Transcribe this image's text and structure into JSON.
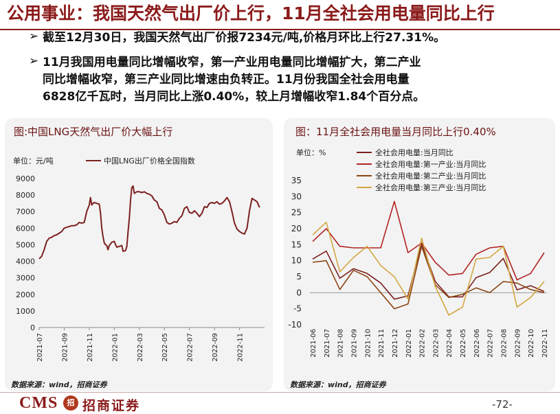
{
  "header": {
    "title": "公用事业：我国天然气出厂价上行，11月全社会用电量同比上行"
  },
  "bullets": [
    {
      "mark": "➢",
      "lines": [
        "截至12月30日，我国天然气出厂价报7234元/吨,价格月环比上行27.31%。"
      ]
    },
    {
      "mark": "➢",
      "lines": [
        "11月我国用电量同比增幅收窄，第一产业用电量同比增幅扩大，第二产业",
        "同比增幅收窄，第三产业同比增速由负转正。11月份我国全社会用电量",
        "6828亿千瓦时，当月同比上涨0.40%，较上月增幅收窄1.84个百分点。"
      ]
    }
  ],
  "left_panel": {
    "title": "图:中国LNG天然气出厂价大幅上行",
    "source": "数据来源：wind，招商证券"
  },
  "right_panel": {
    "title": "图：11月全社会用电量当月同比上行0.40%",
    "source": "数据来源：wind，招商证券"
  },
  "footer": {
    "logo_text": "CMS",
    "logo_mark": "招",
    "logo_cn": "招商证券",
    "page": "-72-"
  },
  "colors": {
    "brand": "#8b1a1a",
    "line_dark": "#7b1f1f",
    "line_red": "#b22222",
    "line_brown": "#8b4513",
    "line_gold": "#d4a640"
  },
  "chart_data": [
    {
      "type": "line",
      "unit_label": "单位：元/吨",
      "title": "图:中国LNG天然气出厂价大幅上行",
      "ylim": [
        0,
        9000
      ],
      "yticks": [
        0,
        1000,
        2000,
        3000,
        4000,
        5000,
        6000,
        7000,
        8000,
        9000
      ],
      "xticks": [
        "2021-07",
        "2021-09",
        "2021-11",
        "2022-01",
        "2022-03",
        "2022-05",
        "2022-07",
        "2022-09",
        "2022-11"
      ],
      "x_month_range": [
        0,
        18
      ],
      "series": [
        {
          "name": "中国LNG出厂价格全国指数",
          "color": "#7b1f1f",
          "points": [
            [
              0.0,
              4150
            ],
            [
              0.2,
              4300
            ],
            [
              0.4,
              4700
            ],
            [
              0.6,
              5200
            ],
            [
              0.8,
              5400
            ],
            [
              1.0,
              5450
            ],
            [
              1.2,
              5550
            ],
            [
              1.4,
              5600
            ],
            [
              1.6,
              5700
            ],
            [
              1.8,
              5800
            ],
            [
              2.0,
              6000
            ],
            [
              2.2,
              6050
            ],
            [
              2.4,
              6100
            ],
            [
              2.6,
              6150
            ],
            [
              2.8,
              6150
            ],
            [
              3.0,
              6200
            ],
            [
              3.2,
              6350
            ],
            [
              3.4,
              6300
            ],
            [
              3.6,
              6350
            ],
            [
              3.8,
              7000
            ],
            [
              4.0,
              7400
            ],
            [
              4.1,
              7850
            ],
            [
              4.2,
              7400
            ],
            [
              4.3,
              7500
            ],
            [
              4.4,
              7550
            ],
            [
              4.6,
              7500
            ],
            [
              4.8,
              7450
            ],
            [
              4.9,
              6900
            ],
            [
              5.0,
              6000
            ],
            [
              5.1,
              5500
            ],
            [
              5.2,
              5100
            ],
            [
              5.3,
              5000
            ],
            [
              5.4,
              4950
            ],
            [
              5.5,
              4700
            ],
            [
              5.6,
              4950
            ],
            [
              5.8,
              5150
            ],
            [
              6.0,
              5200
            ],
            [
              6.1,
              5000
            ],
            [
              6.2,
              4850
            ],
            [
              6.4,
              4900
            ],
            [
              6.6,
              4950
            ],
            [
              6.7,
              4600
            ],
            [
              6.9,
              4650
            ],
            [
              7.0,
              4900
            ],
            [
              7.1,
              5800
            ],
            [
              7.2,
              6600
            ],
            [
              7.3,
              7700
            ],
            [
              7.4,
              8450
            ],
            [
              7.5,
              8550
            ],
            [
              7.6,
              8100
            ],
            [
              7.8,
              8200
            ],
            [
              8.0,
              8200
            ],
            [
              8.2,
              8150
            ],
            [
              8.4,
              8200
            ],
            [
              8.6,
              8100
            ],
            [
              8.8,
              8050
            ],
            [
              9.0,
              7950
            ],
            [
              9.2,
              7700
            ],
            [
              9.4,
              7600
            ],
            [
              9.6,
              7200
            ],
            [
              9.8,
              7100
            ],
            [
              10.0,
              6800
            ],
            [
              10.2,
              6350
            ],
            [
              10.4,
              6250
            ],
            [
              10.6,
              6300
            ],
            [
              10.8,
              6400
            ],
            [
              11.0,
              6350
            ],
            [
              11.2,
              6600
            ],
            [
              11.4,
              6750
            ],
            [
              11.6,
              7200
            ],
            [
              11.8,
              7300
            ],
            [
              12.0,
              6950
            ],
            [
              12.2,
              6900
            ],
            [
              12.4,
              7050
            ],
            [
              12.6,
              6900
            ],
            [
              12.8,
              6700
            ],
            [
              13.0,
              6900
            ],
            [
              13.2,
              7300
            ],
            [
              13.4,
              7250
            ],
            [
              13.6,
              7500
            ],
            [
              13.8,
              7550
            ],
            [
              14.0,
              7500
            ],
            [
              14.2,
              7600
            ],
            [
              14.4,
              7450
            ],
            [
              14.6,
              7500
            ],
            [
              14.8,
              7650
            ],
            [
              15.0,
              7850
            ],
            [
              15.2,
              7600
            ],
            [
              15.4,
              7000
            ],
            [
              15.6,
              6300
            ],
            [
              15.8,
              5950
            ],
            [
              16.0,
              5800
            ],
            [
              16.2,
              5700
            ],
            [
              16.4,
              5650
            ],
            [
              16.6,
              6000
            ],
            [
              16.8,
              7050
            ],
            [
              17.0,
              7800
            ],
            [
              17.2,
              7700
            ],
            [
              17.4,
              7600
            ],
            [
              17.6,
              7250
            ]
          ]
        }
      ]
    },
    {
      "type": "line",
      "unit_label": "单位：%",
      "title": "图：11月全社会用电量当月同比上行0.40%",
      "ylim": [
        -10,
        35
      ],
      "yticks": [
        -10,
        -5,
        0,
        5,
        10,
        15,
        20,
        25,
        30,
        35
      ],
      "categories": [
        "2021-06",
        "2021-07",
        "2021-08",
        "2021-09",
        "2021-10",
        "2021-11",
        "2021-12",
        "2022-01",
        "2022-02",
        "2022-03",
        "2022-04",
        "2022-05",
        "2022-06",
        "2022-07",
        "2022-08",
        "2022-09",
        "2022-10",
        "2022-11"
      ],
      "series": [
        {
          "name": "全社会用电量:当月同比",
          "color": "#7b1f1f",
          "values": [
            10.5,
            13.0,
            4.5,
            7.5,
            6.0,
            3.0,
            -2.0,
            -1.0,
            15.5,
            3.5,
            -1.3,
            -1.3,
            4.7,
            6.3,
            10.7,
            0.9,
            2.2,
            0.4
          ]
        },
        {
          "name": "全社会用电量:第一产业:当月同比",
          "color": "#b22222",
          "values": [
            16.0,
            20.0,
            14.5,
            14.0,
            14.0,
            14.0,
            28.5,
            12.5,
            15.5,
            9.5,
            5.5,
            6.0,
            12.0,
            14.0,
            14.5,
            4.0,
            6.0,
            12.5
          ]
        },
        {
          "name": "全社会用电量:第二产业:当月同比",
          "color": "#8b4513",
          "values": [
            9.5,
            10.0,
            1.0,
            7.0,
            5.0,
            0.0,
            -5.0,
            -3.5,
            14.5,
            2.5,
            -1.5,
            -0.5,
            1.5,
            0.0,
            3.5,
            3.0,
            1.0,
            0.0
          ]
        },
        {
          "name": "全社会用电量:第三产业:当月同比",
          "color": "#d4a640",
          "values": [
            18.0,
            22.0,
            6.5,
            11.0,
            14.5,
            8.5,
            5.0,
            -2.0,
            17.0,
            2.0,
            -7.0,
            -4.5,
            10.5,
            11.0,
            14.5,
            -4.5,
            -1.5,
            3.5
          ]
        }
      ]
    }
  ]
}
